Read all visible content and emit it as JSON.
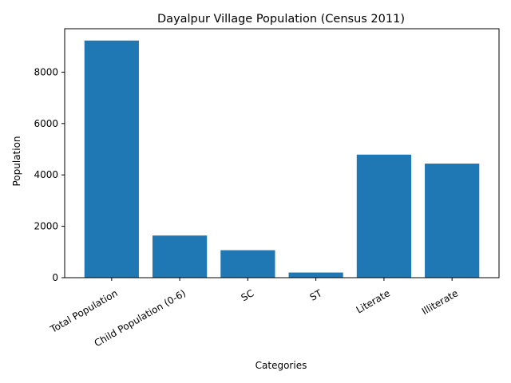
{
  "chart_data": {
    "type": "bar",
    "title": "Dayalpur Village Population (Census 2011)",
    "xlabel": "Categories",
    "ylabel": "Population",
    "categories": [
      "Total Population",
      "Child Population (0-6)",
      "SC",
      "ST",
      "Literate",
      "Illiterate"
    ],
    "values": [
      9230,
      1640,
      1070,
      200,
      4790,
      4440
    ],
    "ylim": [
      0,
      9690
    ],
    "yticks": [
      0,
      2000,
      4000,
      6000,
      8000
    ],
    "ytick_labels": [
      "0",
      "2000",
      "4000",
      "6000",
      "8000"
    ],
    "grid": false,
    "bar_color": "#1f77b4"
  }
}
